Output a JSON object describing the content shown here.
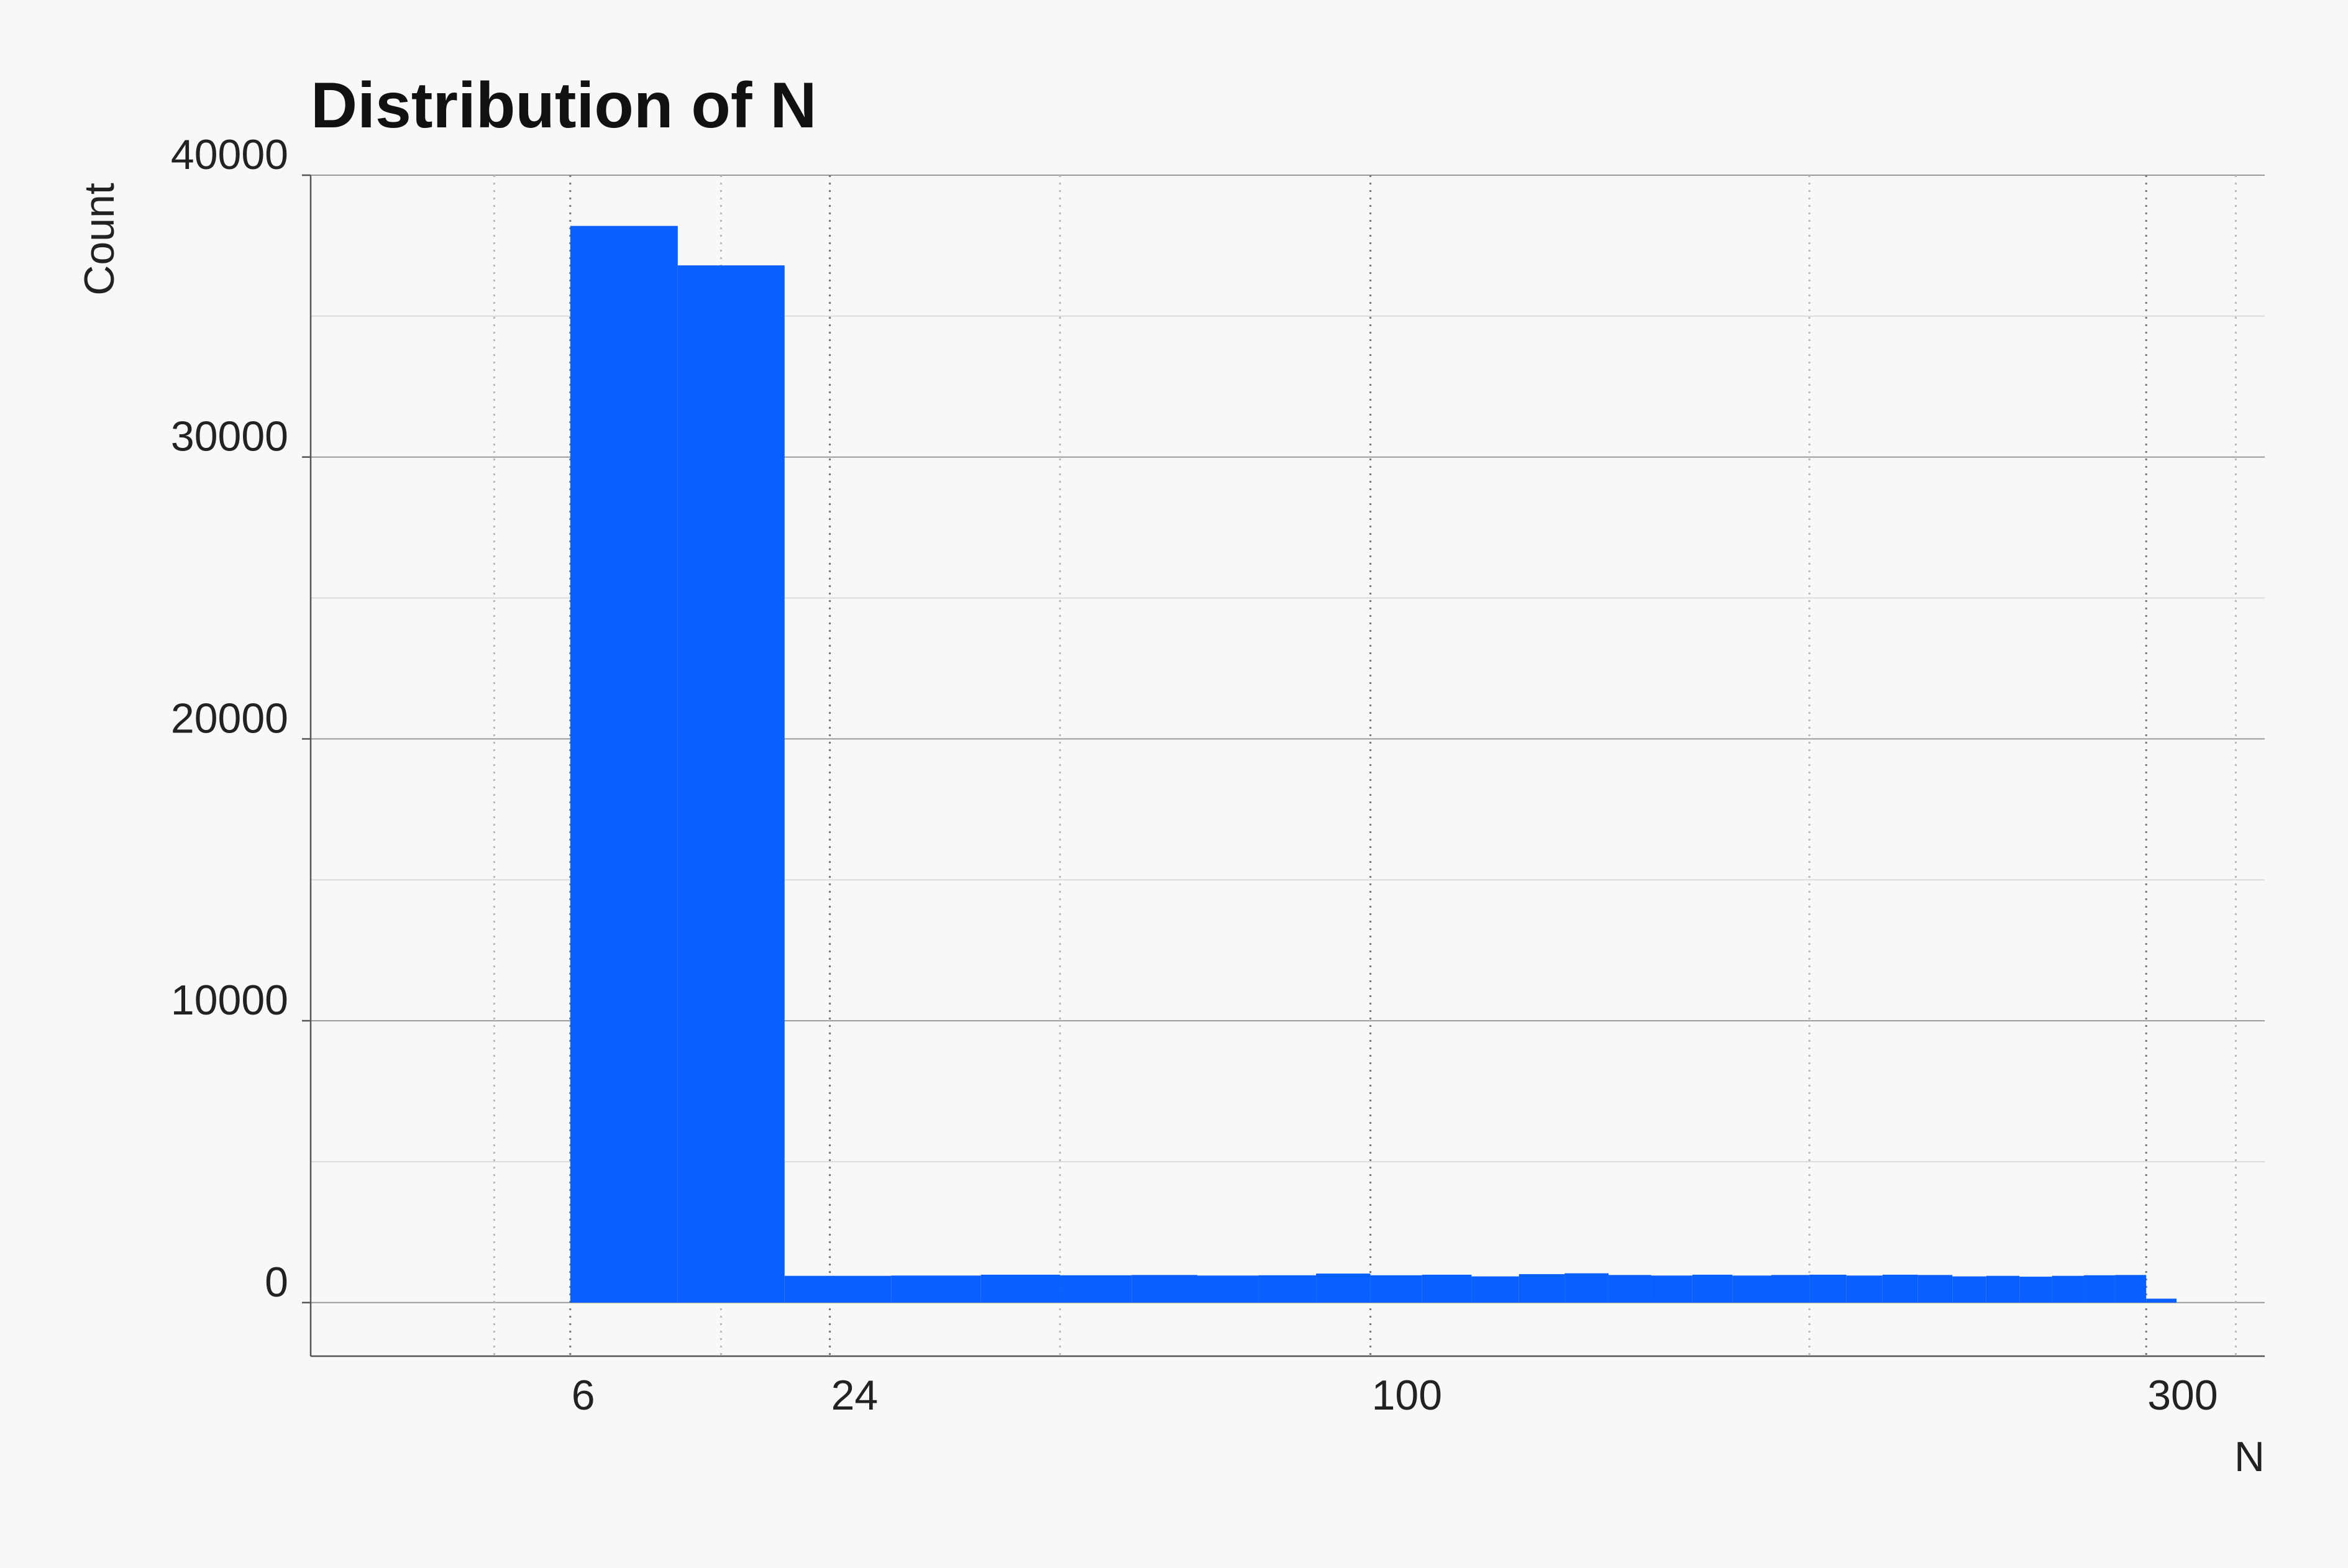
{
  "chart_data": {
    "type": "bar",
    "title": "Distribution of N",
    "xlabel": "N",
    "ylabel": "Count",
    "xscale": "sqrt",
    "xlim": [
      0,
      340
    ],
    "ylim": [
      -1900,
      40000
    ],
    "yticks": [
      0,
      10000,
      20000,
      30000,
      40000
    ],
    "ytick_labels": [
      "0",
      "10000",
      "20000",
      "30000",
      "40000"
    ],
    "xticks": [
      6,
      24,
      100,
      300
    ],
    "xtick_labels": [
      "6",
      "24",
      "100",
      "300"
    ],
    "grid": true,
    "legend": "none",
    "bar_color": "#0a5fff",
    "bins": [
      {
        "x0": 6,
        "x1": 12,
        "count": 38200
      },
      {
        "x0": 12,
        "x1": 20,
        "count": 36800
      },
      {
        "x0": 20,
        "x1": 30,
        "count": 950
      },
      {
        "x0": 30,
        "x1": 40,
        "count": 960
      },
      {
        "x0": 40,
        "x1": 50,
        "count": 990
      },
      {
        "x0": 50,
        "x1": 60,
        "count": 970
      },
      {
        "x0": 60,
        "x1": 70,
        "count": 980
      },
      {
        "x0": 70,
        "x1": 80,
        "count": 960
      },
      {
        "x0": 80,
        "x1": 90,
        "count": 970
      },
      {
        "x0": 90,
        "x1": 100,
        "count": 1030
      },
      {
        "x0": 100,
        "x1": 110,
        "count": 970
      },
      {
        "x0": 110,
        "x1": 120,
        "count": 990
      },
      {
        "x0": 120,
        "x1": 130,
        "count": 930
      },
      {
        "x0": 130,
        "x1": 140,
        "count": 1010
      },
      {
        "x0": 140,
        "x1": 150,
        "count": 1040
      },
      {
        "x0": 150,
        "x1": 160,
        "count": 980
      },
      {
        "x0": 160,
        "x1": 170,
        "count": 960
      },
      {
        "x0": 170,
        "x1": 180,
        "count": 990
      },
      {
        "x0": 180,
        "x1": 190,
        "count": 960
      },
      {
        "x0": 190,
        "x1": 200,
        "count": 980
      },
      {
        "x0": 200,
        "x1": 210,
        "count": 990
      },
      {
        "x0": 210,
        "x1": 220,
        "count": 960
      },
      {
        "x0": 220,
        "x1": 230,
        "count": 990
      },
      {
        "x0": 230,
        "x1": 240,
        "count": 980
      },
      {
        "x0": 240,
        "x1": 250,
        "count": 930
      },
      {
        "x0": 250,
        "x1": 260,
        "count": 950
      },
      {
        "x0": 260,
        "x1": 270,
        "count": 920
      },
      {
        "x0": 270,
        "x1": 280,
        "count": 950
      },
      {
        "x0": 280,
        "x1": 290,
        "count": 970
      },
      {
        "x0": 290,
        "x1": 300,
        "count": 980
      },
      {
        "x0": 300,
        "x1": 310,
        "count": 140
      }
    ]
  }
}
